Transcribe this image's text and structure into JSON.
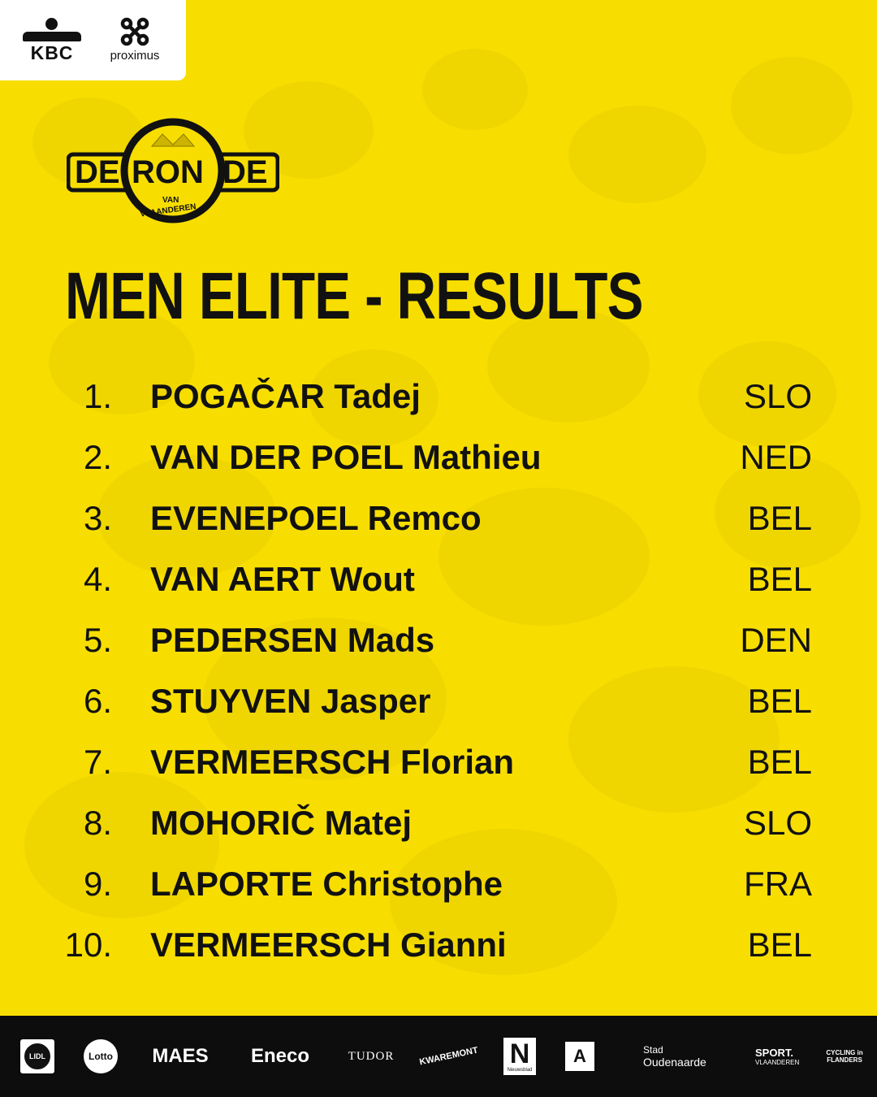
{
  "top_sponsors": {
    "kbc": "KBC",
    "proximus": "proximus"
  },
  "logo": {
    "left_word": "DE",
    "center_word": "RON",
    "right_word": "DE",
    "ring_text_1": "VAN",
    "ring_text_2": "VLAANDEREN"
  },
  "title": "MEN ELITE - RESULTS",
  "results": [
    {
      "rank": "1.",
      "rider": "POGAČAR Tadej",
      "country": "SLO"
    },
    {
      "rank": "2.",
      "rider": "VAN DER POEL Mathieu",
      "country": "NED"
    },
    {
      "rank": "3.",
      "rider": "EVENEPOEL Remco",
      "country": "BEL"
    },
    {
      "rank": "4.",
      "rider": "VAN AERT Wout",
      "country": "BEL"
    },
    {
      "rank": "5.",
      "rider": "PEDERSEN Mads",
      "country": "DEN"
    },
    {
      "rank": "6.",
      "rider": "STUYVEN Jasper",
      "country": "BEL"
    },
    {
      "rank": "7.",
      "rider": "VERMEERSCH Florian",
      "country": "BEL"
    },
    {
      "rank": "8.",
      "rider": "MOHORIČ Matej",
      "country": "SLO"
    },
    {
      "rank": "9.",
      "rider": "LAPORTE Christophe",
      "country": "FRA"
    },
    {
      "rank": "10.",
      "rider": "VERMEERSCH Gianni",
      "country": "BEL"
    }
  ],
  "bottom_sponsors": {
    "lidl": "LIDL",
    "lotto": "Lotto",
    "maes": "MAES",
    "eneco": "Eneco",
    "tudor": "TUDOR",
    "kwaremont": "KWAREMONT",
    "nieuwsblad_letter": "N",
    "nieuwsblad": "Nieuwsblad",
    "antwerpen": "A",
    "oudenaarde_1": "Stad",
    "oudenaarde_2": "Oudenaarde",
    "sport_1": "SPORT.",
    "sport_2": "VLAANDEREN",
    "cycling_1": "CYCLING in",
    "cycling_2": "FLANDERS"
  },
  "colors": {
    "background": "#f7de00",
    "text": "#111111",
    "bar": "#0d0d0d"
  }
}
